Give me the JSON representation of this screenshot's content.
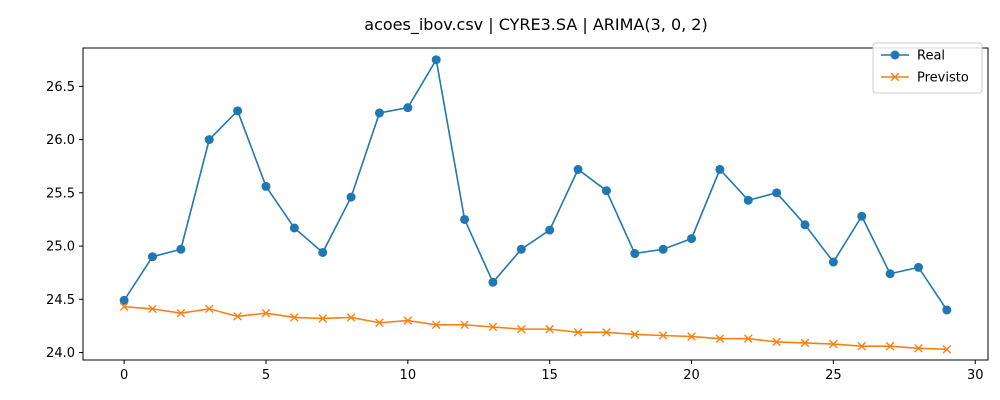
{
  "chart_data": {
    "type": "line",
    "title": "acoes_ibov.csv | CYRE3.SA | ARIMA(3, 0, 2)",
    "xlabel": "",
    "ylabel": "",
    "x": [
      0,
      1,
      2,
      3,
      4,
      5,
      6,
      7,
      8,
      9,
      10,
      11,
      12,
      13,
      14,
      15,
      16,
      17,
      18,
      19,
      20,
      21,
      22,
      23,
      24,
      25,
      26,
      27,
      28,
      29
    ],
    "xlim": [
      -1.45,
      30.45
    ],
    "ylim": [
      23.93,
      26.86
    ],
    "xticks": [
      0,
      5,
      10,
      15,
      20,
      25,
      30
    ],
    "xtick_labels": [
      "0",
      "5",
      "10",
      "15",
      "20",
      "25",
      "30"
    ],
    "yticks": [
      24.0,
      24.5,
      25.0,
      25.5,
      26.0,
      26.5
    ],
    "ytick_labels": [
      "24.0",
      "24.5",
      "25.0",
      "25.5",
      "26.0",
      "26.5"
    ],
    "grid": false,
    "legend_position": "top-right",
    "series": [
      {
        "name": "Real",
        "color": "#1f77b4",
        "marker": "circle",
        "values": [
          24.49,
          24.9,
          24.97,
          26.0,
          26.27,
          25.56,
          25.17,
          24.94,
          25.46,
          26.25,
          26.3,
          26.75,
          25.25,
          24.66,
          24.97,
          25.15,
          25.72,
          25.52,
          24.93,
          24.97,
          25.07,
          25.72,
          25.43,
          25.5,
          25.2,
          24.85,
          25.28,
          24.74,
          24.8,
          24.4
        ]
      },
      {
        "name": "Previsto",
        "color": "#ff7f0e",
        "marker": "x",
        "values": [
          24.43,
          24.41,
          24.37,
          24.41,
          24.34,
          24.37,
          24.33,
          24.32,
          24.33,
          24.28,
          24.3,
          24.26,
          24.26,
          24.24,
          24.22,
          24.22,
          24.19,
          24.19,
          24.17,
          24.16,
          24.15,
          24.13,
          24.13,
          24.1,
          24.09,
          24.08,
          24.06,
          24.06,
          24.04,
          24.03
        ]
      }
    ]
  }
}
